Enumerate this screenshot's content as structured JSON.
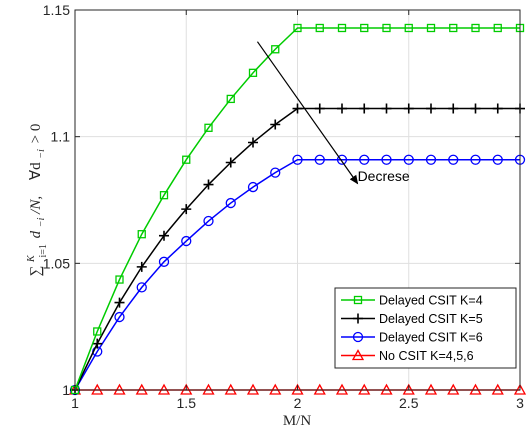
{
  "chart_data": {
    "type": "line",
    "xlabel": "M/N",
    "ylabel": "∑ d_i/N,   ∀d_i > 0",
    "ylabel_parts": {
      "sum": "∑",
      "sup": "K",
      "sub": "i=1",
      "body": "d",
      "body_sub": "−i",
      "tail": "/N,",
      "forall": "∀d",
      "forall_sub": "−i",
      "cond": "> 0"
    },
    "xlim": [
      1,
      3
    ],
    "ylim": [
      1,
      1.15
    ],
    "xticks": [
      1,
      1.5,
      2,
      2.5,
      3
    ],
    "xtick_labels": [
      "1",
      "1.5",
      "2",
      "2.5",
      "3"
    ],
    "yticks": [
      1,
      1.05,
      1.1,
      1.15
    ],
    "ytick_labels": [
      "1",
      "1.05",
      "1.1",
      "1.15"
    ],
    "grid": true,
    "legend_position": "bottom-right",
    "x": [
      1.0,
      1.1,
      1.2,
      1.3,
      1.4,
      1.5,
      1.6,
      1.7,
      1.8,
      1.9,
      2.0,
      2.1,
      2.2,
      2.3,
      2.4,
      2.5,
      2.6,
      2.7,
      2.8,
      2.9,
      3.0
    ],
    "series": [
      {
        "name": "Delayed CSIT K=4",
        "color": "#00cc00",
        "marker": "square",
        "values": [
          1.0,
          1.0231,
          1.0436,
          1.0615,
          1.0769,
          1.0909,
          1.1035,
          1.1149,
          1.1252,
          1.1345,
          1.1429,
          1.1429,
          1.1429,
          1.1429,
          1.1429,
          1.1429,
          1.1429,
          1.1429,
          1.1429,
          1.1429,
          1.1429
        ]
      },
      {
        "name": "Delayed CSIT K=5",
        "color": "#000000",
        "marker": "plus",
        "values": [
          1.0,
          1.0183,
          1.0345,
          1.0486,
          1.0609,
          1.0714,
          1.0811,
          1.0898,
          1.0977,
          1.1048,
          1.1111,
          1.1111,
          1.1111,
          1.1111,
          1.1111,
          1.1111,
          1.1111,
          1.1111,
          1.1111,
          1.1111,
          1.1111
        ]
      },
      {
        "name": "Delayed CSIT K=6",
        "color": "#0000ff",
        "marker": "circle",
        "values": [
          1.0,
          1.0152,
          1.0288,
          1.0405,
          1.0506,
          1.0588,
          1.0667,
          1.0738,
          1.0801,
          1.0858,
          1.0909,
          1.0909,
          1.0909,
          1.0909,
          1.0909,
          1.0909,
          1.0909,
          1.0909,
          1.0909,
          1.0909,
          1.0909
        ]
      },
      {
        "name": "No CSIT K=4,5,6",
        "color": "#ff0000",
        "marker": "triangle",
        "values": [
          1.0,
          1.0,
          1.0,
          1.0,
          1.0,
          1.0,
          1.0,
          1.0,
          1.0,
          1.0,
          1.0,
          1.0,
          1.0,
          1.0,
          1.0,
          1.0,
          1.0,
          1.0,
          1.0,
          1.0,
          1.0
        ]
      }
    ],
    "annotation": {
      "text": "Decrese",
      "arrow_from": [
        1.82,
        1.1375
      ],
      "arrow_to": [
        2.27,
        1.0815
      ],
      "text_at": [
        2.27,
        1.0825
      ]
    }
  }
}
